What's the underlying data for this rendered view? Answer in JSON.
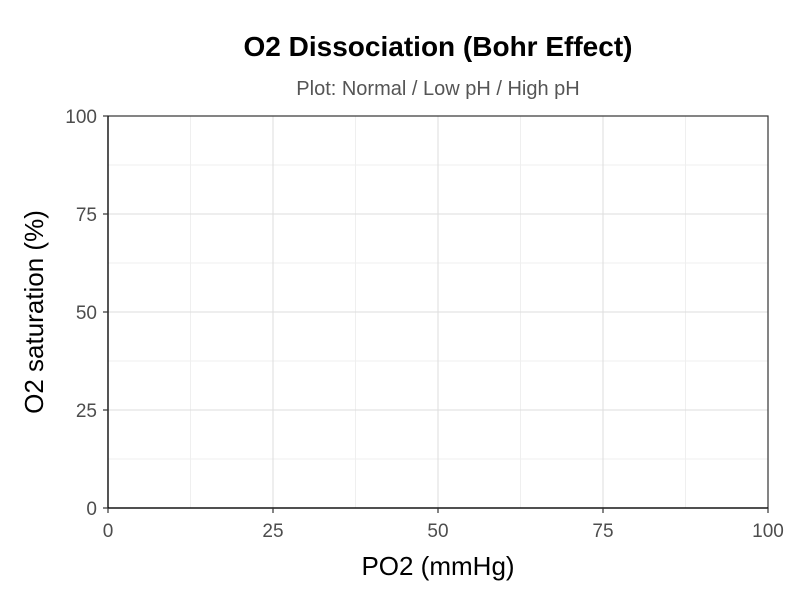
{
  "chart_data": {
    "type": "line",
    "title": "O2 Dissociation (Bohr Effect)",
    "subtitle": "Plot: Normal / Low pH / High pH",
    "xlabel": "PO2 (mmHg)",
    "ylabel": "O2 saturation (%)",
    "xlim": [
      0,
      100
    ],
    "ylim": [
      0,
      100
    ],
    "x_ticks": [
      0,
      25,
      50,
      75,
      100
    ],
    "y_ticks": [
      0,
      25,
      50,
      75,
      100
    ],
    "x_minor": [
      12.5,
      37.5,
      62.5,
      87.5
    ],
    "y_minor": [
      12.5,
      37.5,
      62.5,
      87.5
    ],
    "grid": true,
    "series": []
  }
}
